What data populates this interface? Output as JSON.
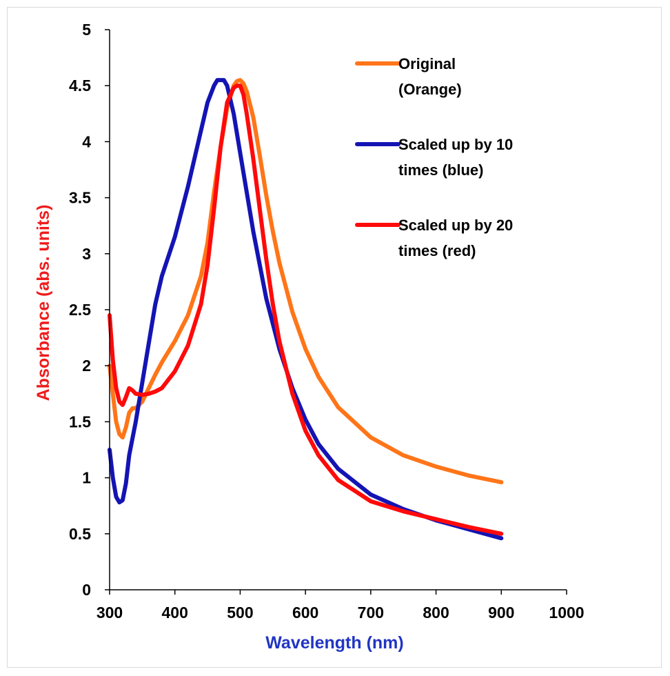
{
  "chart_data": {
    "type": "line",
    "title": "",
    "xlabel": "Wavelength (nm)",
    "ylabel": "Absorbance (abs. units)",
    "xlabel_color": "#2135c2",
    "ylabel_color": "#ee1c1c",
    "xlim": [
      300,
      1000
    ],
    "ylim": [
      0,
      5
    ],
    "xticks": [
      "300",
      "400",
      "500",
      "600",
      "700",
      "800",
      "900",
      "1000"
    ],
    "yticks": [
      "0",
      "0.5",
      "1",
      "1.5",
      "2",
      "2.5",
      "3",
      "3.5",
      "4",
      "4.5",
      "5"
    ],
    "grid": false,
    "legend_position": "top-right",
    "series": [
      {
        "name_lines": [
          "Original",
          "(Orange)"
        ],
        "color": "#ff7518",
        "x": [
          300,
          305,
          310,
          315,
          320,
          325,
          330,
          335,
          340,
          350,
          360,
          370,
          380,
          400,
          420,
          440,
          450,
          460,
          470,
          480,
          490,
          495,
          500,
          505,
          510,
          520,
          530,
          540,
          550,
          560,
          580,
          600,
          620,
          650,
          700,
          750,
          800,
          850,
          900
        ],
        "y": [
          2.0,
          1.75,
          1.5,
          1.39,
          1.36,
          1.45,
          1.58,
          1.62,
          1.62,
          1.68,
          1.8,
          1.92,
          2.03,
          2.22,
          2.45,
          2.8,
          3.1,
          3.55,
          3.95,
          4.3,
          4.5,
          4.54,
          4.55,
          4.52,
          4.45,
          4.22,
          3.88,
          3.52,
          3.2,
          2.92,
          2.48,
          2.15,
          1.9,
          1.63,
          1.36,
          1.2,
          1.1,
          1.02,
          0.96
        ]
      },
      {
        "name_lines": [
          "Scaled up by 10",
          "times (blue)"
        ],
        "color": "#1414b4",
        "x": [
          300,
          305,
          310,
          315,
          320,
          325,
          330,
          340,
          350,
          360,
          370,
          380,
          400,
          420,
          440,
          450,
          460,
          465,
          470,
          475,
          480,
          490,
          500,
          510,
          520,
          540,
          560,
          580,
          600,
          620,
          650,
          700,
          750,
          800,
          850,
          900
        ],
        "y": [
          1.25,
          1.0,
          0.83,
          0.78,
          0.8,
          0.95,
          1.2,
          1.5,
          1.85,
          2.2,
          2.55,
          2.8,
          3.15,
          3.6,
          4.1,
          4.35,
          4.5,
          4.55,
          4.55,
          4.55,
          4.5,
          4.25,
          3.9,
          3.55,
          3.2,
          2.6,
          2.15,
          1.8,
          1.52,
          1.3,
          1.08,
          0.85,
          0.72,
          0.62,
          0.54,
          0.46
        ]
      },
      {
        "name_lines": [
          "Scaled up by 20",
          "times (red)"
        ],
        "color": "#ff0a0a",
        "x": [
          300,
          305,
          310,
          315,
          320,
          325,
          330,
          335,
          340,
          350,
          360,
          370,
          380,
          400,
          420,
          440,
          450,
          460,
          470,
          480,
          490,
          495,
          500,
          505,
          510,
          520,
          530,
          540,
          550,
          560,
          580,
          600,
          620,
          650,
          700,
          750,
          800,
          850,
          900
        ],
        "y": [
          2.45,
          2.05,
          1.8,
          1.68,
          1.65,
          1.72,
          1.8,
          1.78,
          1.75,
          1.74,
          1.75,
          1.77,
          1.8,
          1.95,
          2.18,
          2.55,
          2.9,
          3.4,
          3.95,
          4.35,
          4.48,
          4.5,
          4.5,
          4.42,
          4.25,
          3.85,
          3.4,
          2.95,
          2.55,
          2.22,
          1.75,
          1.42,
          1.2,
          0.98,
          0.79,
          0.7,
          0.63,
          0.56,
          0.5
        ]
      }
    ]
  }
}
